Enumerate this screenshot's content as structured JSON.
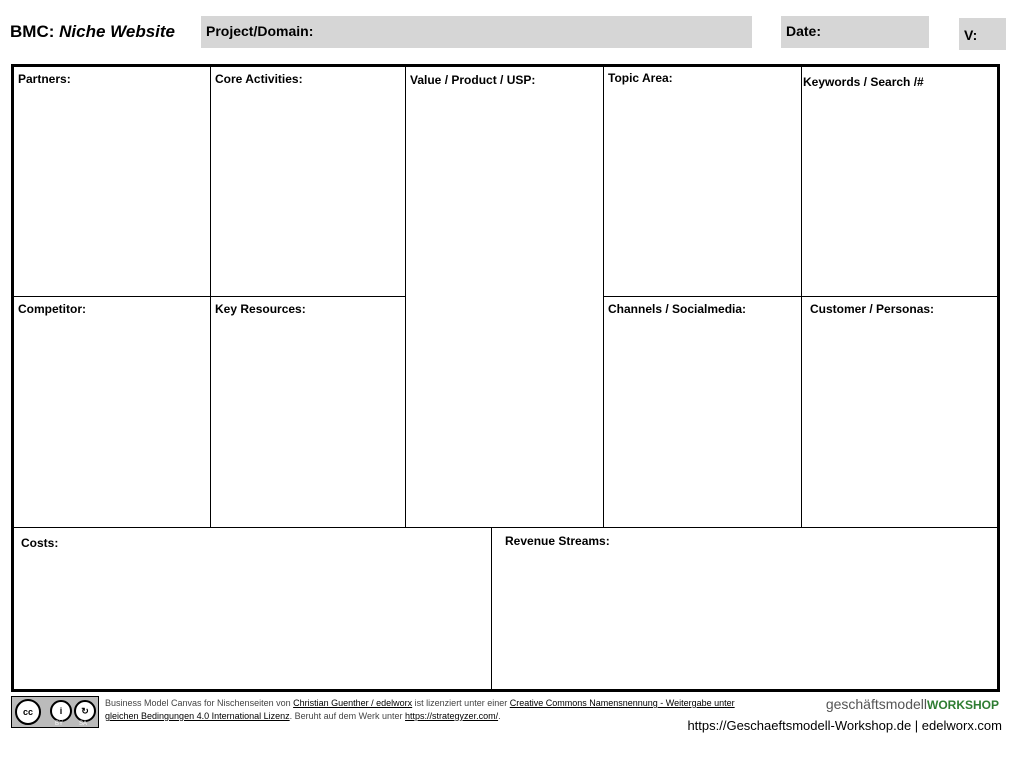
{
  "header": {
    "title_prefix": "BMC:",
    "title_italic": "Niche Website",
    "project_label": "Project/Domain:",
    "date_label": "Date:",
    "version_label": "V:"
  },
  "cells": {
    "partners": "Partners:",
    "core_activities": "Core Activities:",
    "value": "Value / Product / USP:",
    "topic": "Topic Area:",
    "keywords": "Keywords / Search /#",
    "competitor": "Competitor:",
    "key_resources": "Key Resources:",
    "channels": "Channels / Socialmedia:",
    "customer": "Customer / Personas:",
    "costs": "Costs:",
    "revenue": "Revenue Streams:"
  },
  "footer": {
    "t1": "Business Model Canvas for Nischenseiten von ",
    "l1": "Christian Guenther / edelworx",
    "t2": " ist lizenziert unter einer ",
    "l2": "Creative Commons Namensnennung - Weitergabe unter gleichen Bedingungen 4.0 International Lizenz",
    "t3": ". Beruht auf dem Werk unter ",
    "l3": "https://strategyzer.com/",
    "t4": ".",
    "brand_light": "geschäftsmodell",
    "brand_bold": "WORKSHOP",
    "brand_color": "#2e7d32",
    "url": "https://Geschaeftsmodell-Workshop.de | edelworx.com",
    "cc_by": "BY",
    "cc_sa": "SA"
  }
}
